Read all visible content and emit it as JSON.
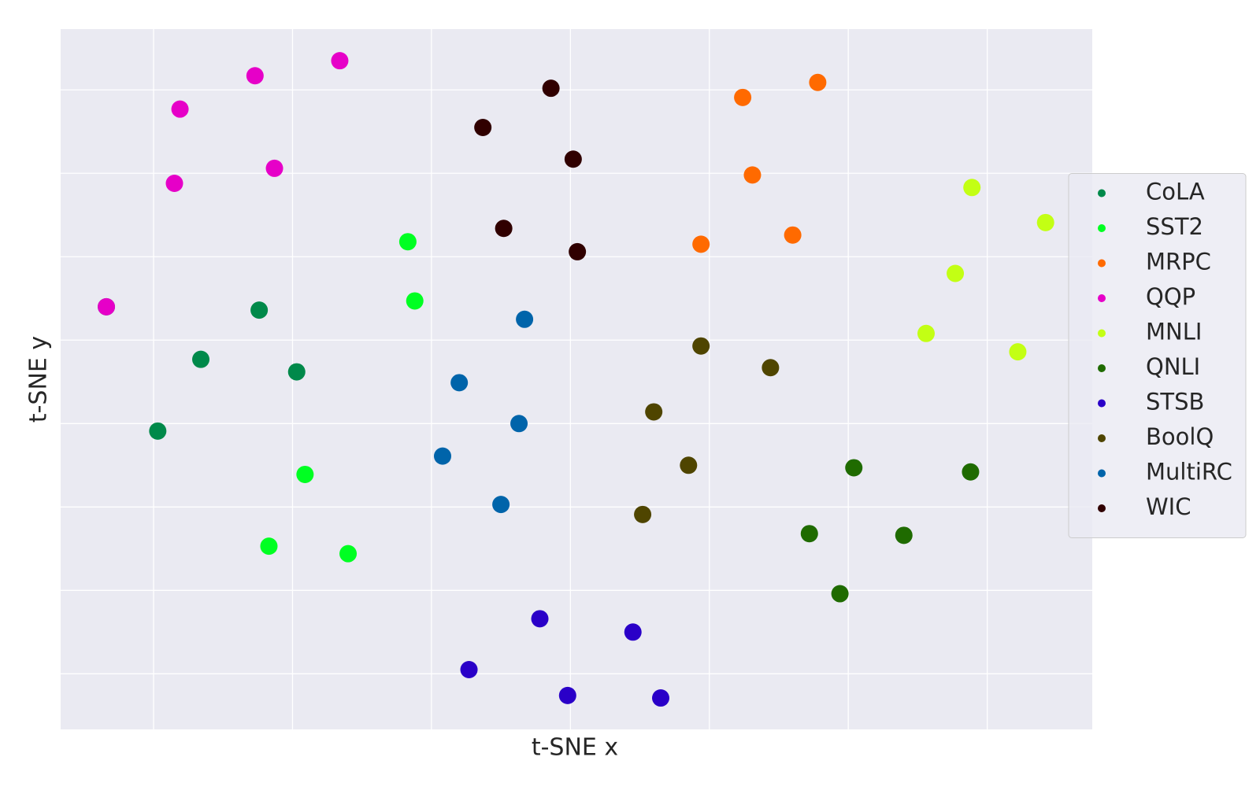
{
  "chart_data": {
    "type": "scatter",
    "x_label": "t-SNE x",
    "y_label": "t-SNE y",
    "xlim": [
      -3.669,
      3.756
    ],
    "ylim": [
      -4.667,
      3.729
    ],
    "xticks": [
      -3,
      -2,
      -1,
      0,
      1,
      2,
      3
    ],
    "yticks": [
      -4,
      -3,
      -2,
      -1,
      0,
      1,
      2,
      3
    ],
    "grid": true,
    "legend": "right",
    "series": [
      {
        "name": "CoLA",
        "color": "#00894a",
        "x": [
          -3.34,
          -2.24,
          -2.66,
          -1.97,
          -2.97
        ],
        "values": [
          0.4,
          0.36,
          -0.23,
          -0.38,
          -1.09
        ]
      },
      {
        "name": "SST2",
        "color": "#00ff22",
        "x": [
          -1.17,
          -1.12,
          -1.91,
          -2.17,
          -1.6
        ],
        "values": [
          1.18,
          0.47,
          -1.61,
          -2.47,
          -2.56
        ]
      },
      {
        "name": "MRPC",
        "color": "#ff6a00",
        "x": [
          1.78,
          1.24,
          1.31,
          0.94,
          1.6
        ],
        "values": [
          3.09,
          2.91,
          1.98,
          1.15,
          1.26
        ]
      },
      {
        "name": "QQP",
        "color": "#e600c8",
        "x": [
          -1.66,
          -2.27,
          -2.81,
          -2.13,
          -2.85,
          -3.34
        ],
        "values": [
          3.35,
          3.17,
          2.77,
          2.06,
          1.88,
          0.4
        ]
      },
      {
        "name": "MNLI",
        "color": "#c3ff14",
        "x": [
          2.89,
          3.42,
          2.77,
          2.56,
          3.22
        ],
        "values": [
          1.83,
          1.41,
          0.8,
          0.08,
          -0.14
        ]
      },
      {
        "name": "QNLI",
        "color": "#1f6b00",
        "x": [
          2.04,
          2.88,
          1.72,
          2.4,
          1.94
        ],
        "values": [
          -1.53,
          -1.58,
          -2.32,
          -2.34,
          -3.04
        ]
      },
      {
        "name": "STSB",
        "color": "#2a00c8",
        "x": [
          -0.22,
          0.45,
          -0.73,
          -0.02,
          0.65
        ],
        "values": [
          -3.34,
          -3.5,
          -3.95,
          -4.26,
          -4.29
        ]
      },
      {
        "name": "BoolQ",
        "color": "#4f4500",
        "x": [
          0.94,
          1.44,
          0.6,
          0.85,
          0.52
        ],
        "values": [
          -0.07,
          -0.33,
          -0.86,
          -1.5,
          -2.09
        ]
      },
      {
        "name": "MultiRC",
        "color": "#0064aa",
        "x": [
          -0.33,
          -0.8,
          -0.37,
          -0.92,
          -0.5
        ],
        "values": [
          0.25,
          -0.51,
          -1.0,
          -1.39,
          -1.97
        ]
      },
      {
        "name": "WIC",
        "color": "#300000",
        "x": [
          -0.14,
          -0.63,
          0.02,
          -0.48,
          0.05
        ],
        "values": [
          3.02,
          2.55,
          2.17,
          1.34,
          1.06
        ]
      }
    ]
  }
}
